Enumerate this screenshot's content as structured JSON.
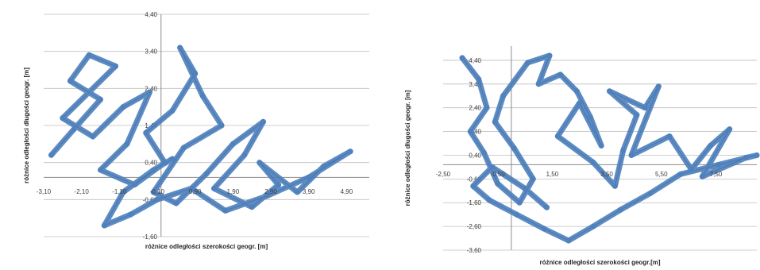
{
  "colors": {
    "series": "#4f81bd",
    "grid": "#bfbfbf",
    "axis": "#8c8c8c",
    "text": "#404040"
  },
  "chart_data": [
    {
      "type": "scatter",
      "title": "",
      "xlabel": "różnice odległości szerokości geogr. [m]",
      "ylabel": "różnice odległości długości geogr. [m]",
      "x_ticks": [
        "-3,10",
        "-2,10",
        "-1,10",
        "-0,10",
        "0,90",
        "1,90",
        "2,90",
        "3,90",
        "4,90"
      ],
      "y_ticks": [
        "4,40",
        "3,40",
        "2,40",
        "1,40",
        "0,40",
        "-0,60",
        "-1,60"
      ],
      "xlim": [
        -3.1,
        5.5
      ],
      "ylim": [
        -1.6,
        4.4
      ],
      "grid": "horizontal",
      "series": [
        {
          "x": [
            -2.9,
            -2.3,
            -1.6,
            -2.4,
            -1.9,
            -1.2,
            -2.6,
            -1.8,
            -1.0,
            -0.3,
            -0.9,
            -1.6,
            -0.7,
            0.1,
            -0.4,
            0.3,
            0.9,
            0.5,
            1.1,
            1.6,
            0.6,
            -0.2,
            0.4,
            1.2,
            1.9,
            2.7,
            2.2,
            1.4,
            2.4,
            3.1,
            2.6,
            3.6,
            4.3,
            5.0,
            3.9,
            2.8,
            1.7,
            0.8,
            -0.1,
            -0.8,
            -1.5,
            -1.0,
            -0.2,
            0.3
          ],
          "y": [
            0.6,
            1.3,
            2.1,
            2.6,
            3.3,
            3.0,
            1.6,
            1.1,
            1.9,
            2.3,
            0.9,
            0.2,
            -0.2,
            0.4,
            1.2,
            1.8,
            2.8,
            3.5,
            2.2,
            1.4,
            0.8,
            -0.4,
            -0.7,
            0.1,
            0.9,
            1.5,
            0.6,
            -0.3,
            -0.8,
            -0.2,
            0.4,
            -0.4,
            0.3,
            0.7,
            0.0,
            -0.5,
            -0.9,
            -0.3,
            -0.6,
            -1.0,
            -1.3,
            -0.4,
            0.2,
            0.5
          ]
        }
      ]
    },
    {
      "type": "scatter",
      "title": "",
      "xlabel": "różnice odległości szerokości geogr.[m]",
      "ylabel": "różnice odległości długości geogr. [m]",
      "x_ticks": [
        "-2,50",
        "-0,50",
        "1,50",
        "3,50",
        "5,50",
        "7,50"
      ],
      "y_ticks": [
        "4,40",
        "3,40",
        "2,40",
        "1,40",
        "0,40",
        "-0,60",
        "-1,60",
        "-2,60",
        "-3,60"
      ],
      "xlim": [
        -2.5,
        9.0
      ],
      "ylim": [
        -3.6,
        5.0
      ],
      "grid": "horizontal",
      "series": [
        {
          "x": [
            -1.8,
            -1.2,
            -0.9,
            -1.5,
            -1.0,
            -0.5,
            0.3,
            0.8,
            0.1,
            -0.6,
            -0.3,
            0.6,
            1.4,
            1.0,
            1.8,
            2.4,
            2.9,
            3.3,
            2.5,
            1.7,
            3.0,
            3.8,
            4.1,
            4.6,
            3.6,
            4.9,
            5.4,
            4.4,
            5.8,
            6.6,
            7.3,
            8.0,
            7.0,
            8.6,
            9.0,
            7.6,
            6.2,
            5.1,
            4.0,
            3.0,
            2.1,
            1.2,
            0.2,
            -0.8,
            -1.4,
            -0.7,
            0.5,
            1.3
          ],
          "y": [
            4.5,
            3.6,
            2.4,
            1.4,
            0.5,
            -0.8,
            -1.6,
            -0.6,
            0.7,
            1.8,
            2.9,
            4.3,
            4.6,
            3.4,
            3.8,
            3.1,
            2.0,
            0.8,
            2.6,
            1.2,
            0.1,
            -0.9,
            0.6,
            2.1,
            3.1,
            2.4,
            3.3,
            0.4,
            1.2,
            -0.2,
            0.8,
            1.5,
            -0.5,
            0.3,
            0.4,
            0.0,
            -0.4,
            -1.2,
            -1.9,
            -2.6,
            -3.2,
            -2.7,
            -2.1,
            -1.5,
            -0.9,
            -0.1,
            -1.0,
            -1.8
          ]
        }
      ]
    }
  ]
}
